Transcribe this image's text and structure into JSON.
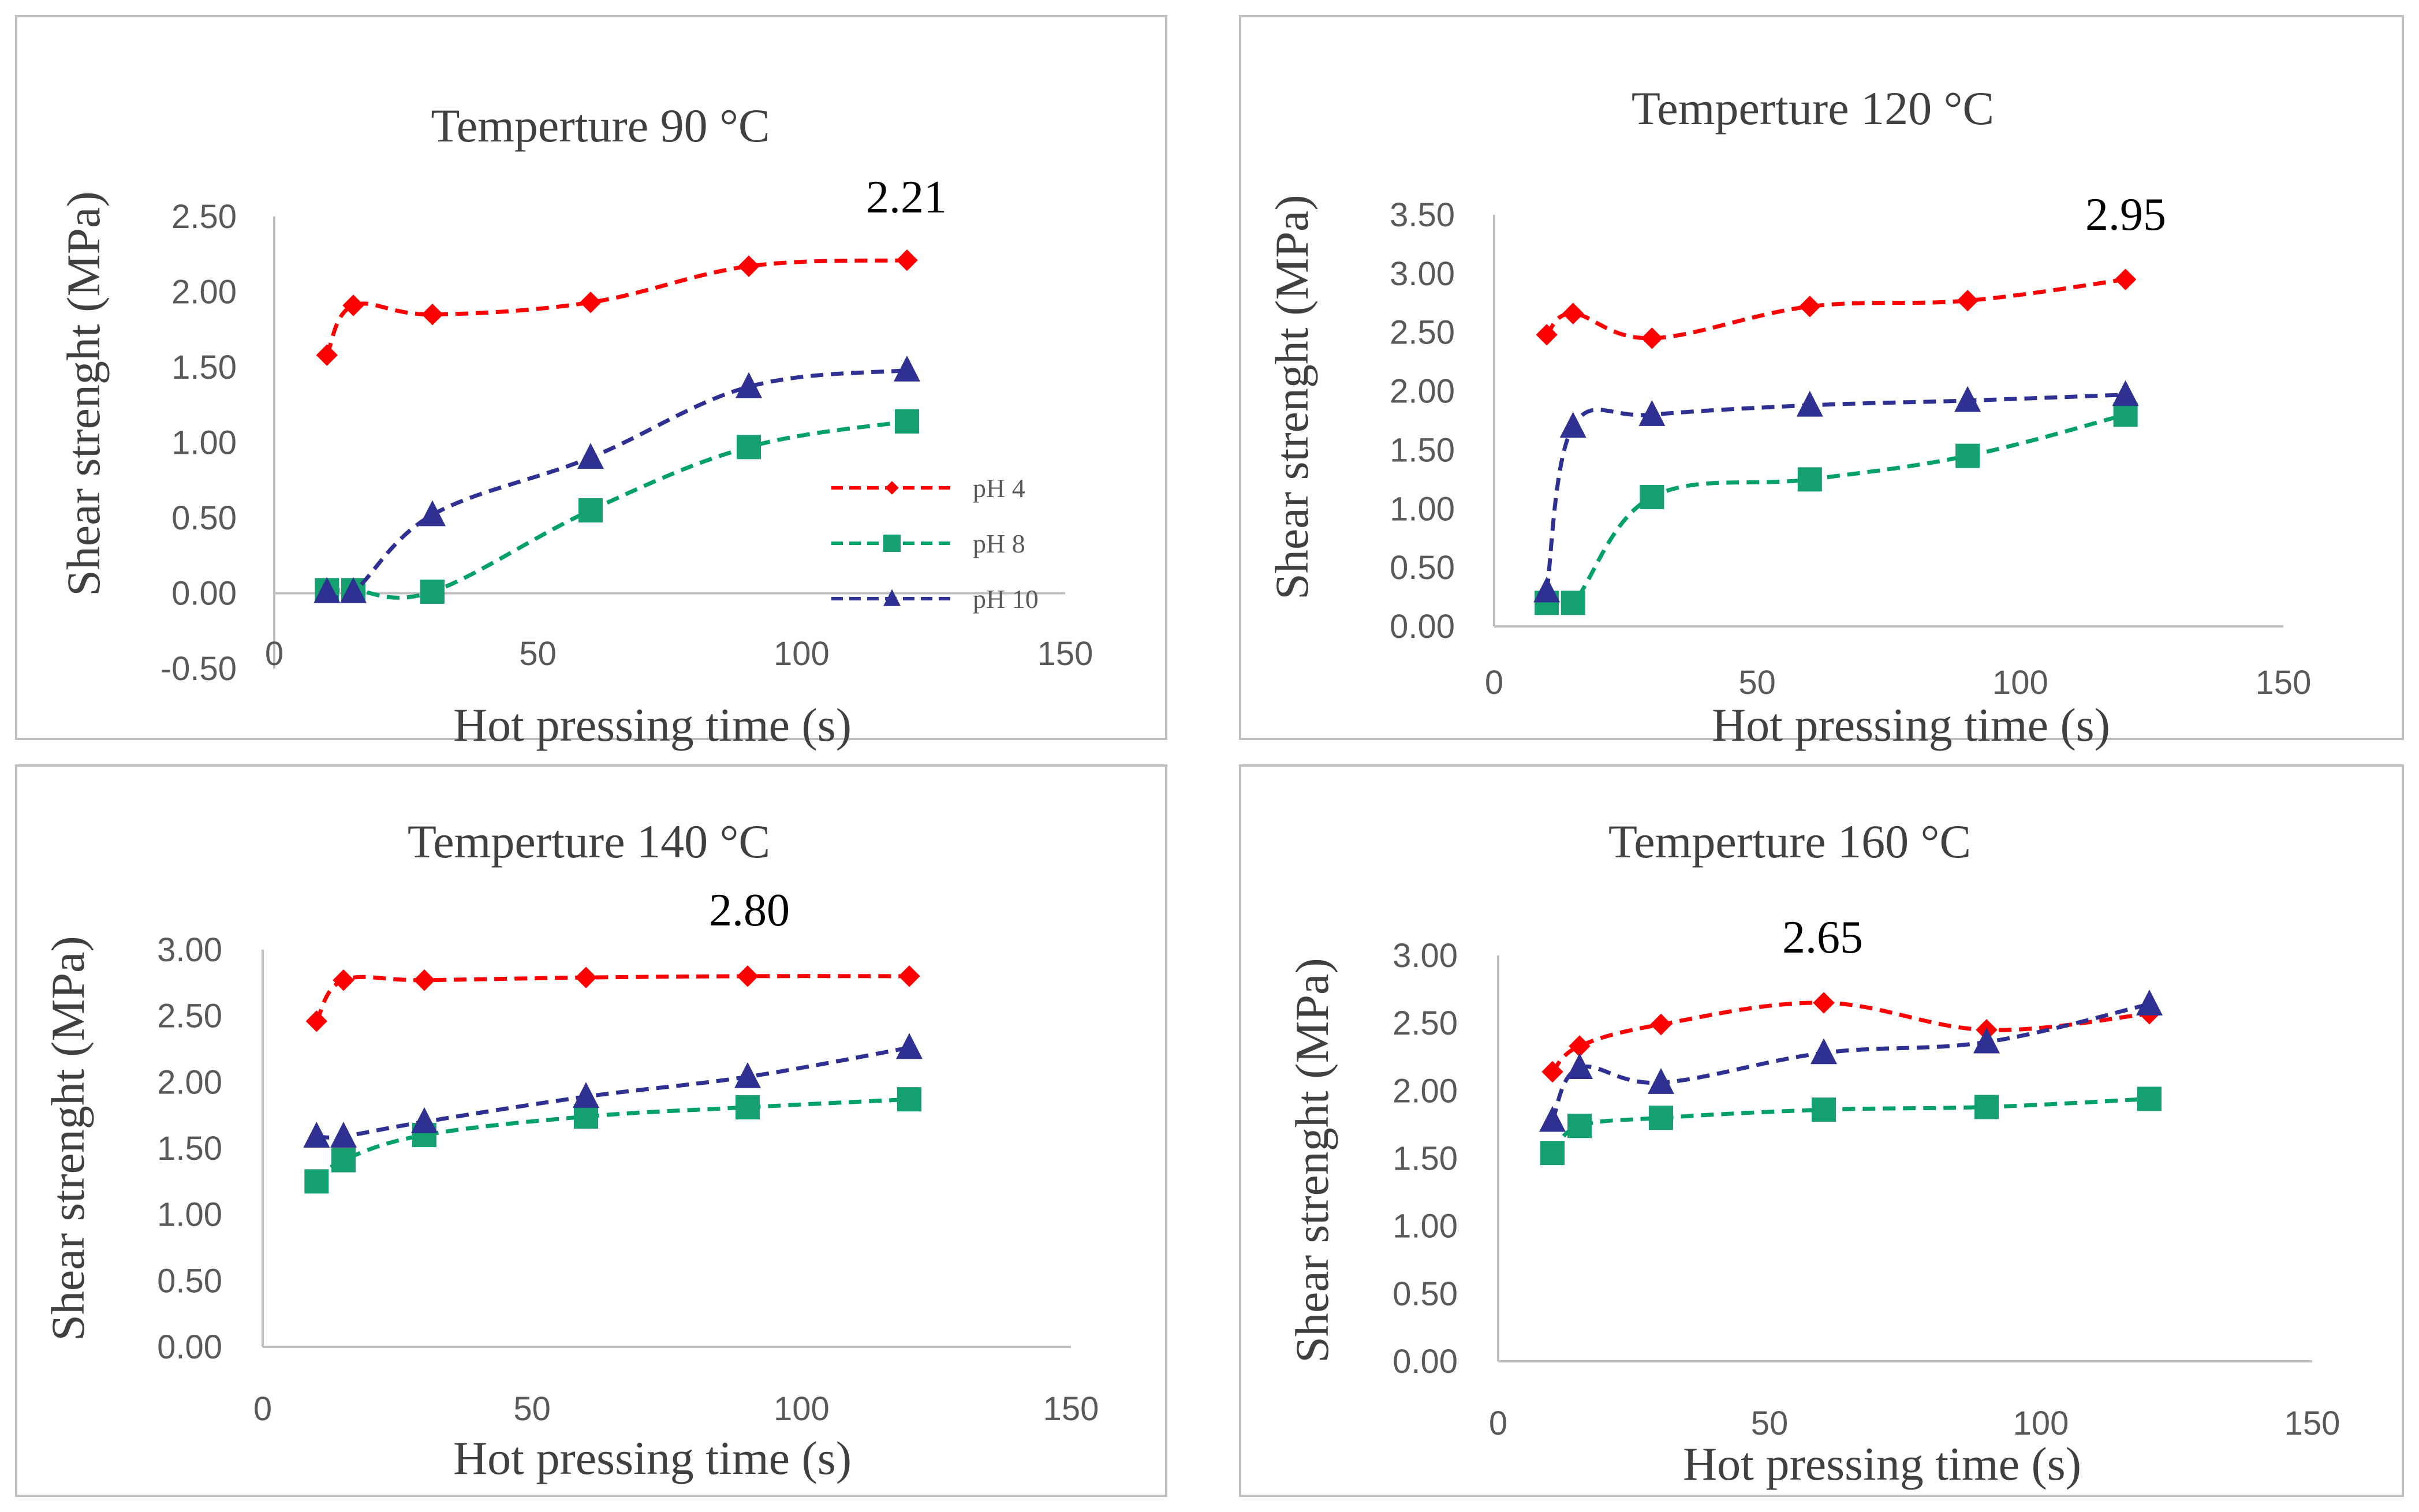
{
  "chart_data": [
    {
      "type": "line",
      "title": "Temperture 90 °C",
      "xlabel": "Hot pressing time (s)",
      "ylabel": "Shear strenght (MPa)",
      "xlim": [
        0,
        150
      ],
      "ylim": [
        -0.5,
        2.5
      ],
      "x_ticks": [
        "0",
        "50",
        "100",
        "150"
      ],
      "y_ticks": [
        "-0.50",
        "0.00",
        "0.50",
        "1.00",
        "1.50",
        "2.00",
        "2.50"
      ],
      "annotation": "2.21",
      "legend": [
        "pH 4",
        "pH 8",
        "pH 10"
      ],
      "series": [
        {
          "name": "pH 4",
          "x": [
            10,
            15,
            30,
            60,
            90,
            120
          ],
          "values": [
            1.58,
            1.91,
            1.85,
            1.93,
            2.17,
            2.21
          ]
        },
        {
          "name": "pH 8",
          "x": [
            10,
            15,
            30,
            60,
            90,
            120
          ],
          "values": [
            0.02,
            0.02,
            0.01,
            0.55,
            0.97,
            1.14
          ]
        },
        {
          "name": "pH 10",
          "x": [
            10,
            15,
            30,
            60,
            90,
            120
          ],
          "values": [
            0.01,
            0.01,
            0.52,
            0.9,
            1.37,
            1.48
          ]
        }
      ]
    },
    {
      "type": "line",
      "title": "Temperture 120 °C",
      "xlabel": "Hot pressing time (s)",
      "ylabel": "Shear strenght (MPa)",
      "xlim": [
        0,
        150
      ],
      "ylim": [
        0,
        3.5
      ],
      "x_ticks": [
        "0",
        "50",
        "100",
        "150"
      ],
      "y_ticks": [
        "0.00",
        "0.50",
        "1.00",
        "1.50",
        "2.00",
        "2.50",
        "3.00",
        "3.50"
      ],
      "annotation": "2.95",
      "series": [
        {
          "name": "pH 4",
          "x": [
            10,
            15,
            30,
            60,
            90,
            120
          ],
          "values": [
            2.48,
            2.66,
            2.45,
            2.72,
            2.77,
            2.95
          ]
        },
        {
          "name": "pH 8",
          "x": [
            10,
            15,
            30,
            60,
            90,
            120
          ],
          "values": [
            0.2,
            0.2,
            1.1,
            1.25,
            1.45,
            1.8
          ]
        },
        {
          "name": "pH 10",
          "x": [
            10,
            15,
            30,
            60,
            90,
            120
          ],
          "values": [
            0.3,
            1.7,
            1.8,
            1.88,
            1.92,
            1.97
          ]
        }
      ]
    },
    {
      "type": "line",
      "title": "Temperture 140 °C",
      "xlabel": "Hot pressing time (s)",
      "ylabel": "Shear strenght (MPa)",
      "xlim": [
        0,
        150
      ],
      "ylim": [
        0,
        3.0
      ],
      "x_ticks": [
        "0",
        "50",
        "100",
        "150"
      ],
      "y_ticks": [
        "0.00",
        "0.50",
        "1.00",
        "1.50",
        "2.00",
        "2.50",
        "3.00"
      ],
      "annotation": "2.80",
      "series": [
        {
          "name": "pH 4",
          "x": [
            10,
            15,
            30,
            60,
            90,
            120
          ],
          "values": [
            2.46,
            2.77,
            2.77,
            2.79,
            2.8,
            2.8
          ]
        },
        {
          "name": "pH 8",
          "x": [
            10,
            15,
            30,
            60,
            90,
            120
          ],
          "values": [
            1.25,
            1.41,
            1.6,
            1.74,
            1.81,
            1.87
          ]
        },
        {
          "name": "pH 10",
          "x": [
            10,
            15,
            30,
            60,
            90,
            120
          ],
          "values": [
            1.59,
            1.59,
            1.7,
            1.89,
            2.04,
            2.26
          ]
        }
      ]
    },
    {
      "type": "line",
      "title": "Temperture 160 °C",
      "xlabel": "Hot pressing time (s)",
      "ylabel": "Shear strenght (MPa)",
      "xlim": [
        0,
        150
      ],
      "ylim": [
        0,
        3.0
      ],
      "x_ticks": [
        "0",
        "50",
        "100",
        "150"
      ],
      "y_ticks": [
        "0.00",
        "0.50",
        "1.00",
        "1.50",
        "2.00",
        "2.50",
        "3.00"
      ],
      "annotation": "2.65",
      "series": [
        {
          "name": "pH 4",
          "x": [
            10,
            15,
            30,
            60,
            90,
            120
          ],
          "values": [
            2.14,
            2.33,
            2.49,
            2.65,
            2.45,
            2.57
          ]
        },
        {
          "name": "pH 8",
          "x": [
            10,
            15,
            30,
            60,
            90,
            120
          ],
          "values": [
            1.54,
            1.74,
            1.8,
            1.86,
            1.88,
            1.94
          ]
        },
        {
          "name": "pH 10",
          "x": [
            10,
            15,
            30,
            60,
            90,
            120
          ],
          "values": [
            1.78,
            2.17,
            2.06,
            2.28,
            2.36,
            2.64
          ]
        }
      ]
    }
  ],
  "colors": {
    "pH 4": "#ff0000",
    "pH 8": "#00a06a",
    "pH 10": "#2e3192",
    "marker_pH 8": "#14a06f",
    "marker_pH 10": "#2e3192"
  }
}
